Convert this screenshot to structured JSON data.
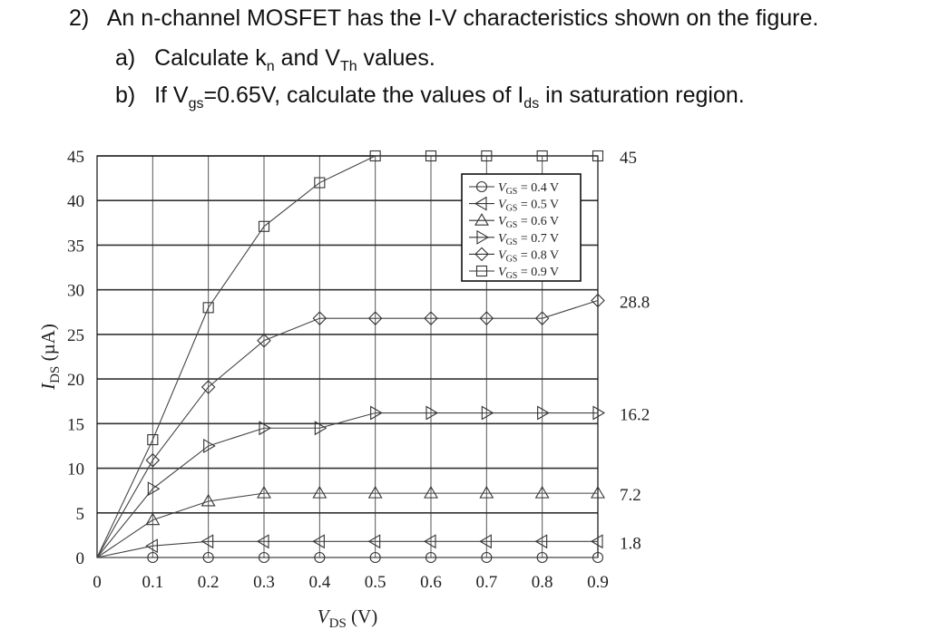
{
  "question": {
    "number": "2)",
    "text": "An n-channel MOSFET has the I-V characteristics shown on the figure.",
    "part_a": {
      "label": "a)",
      "pre": "Calculate k",
      "sub1": "n",
      "mid": " and V",
      "sub2": "Th",
      "post": " values."
    },
    "part_b": {
      "label": "b)",
      "pre": "If V",
      "sub1": "gs",
      "mid": "=0.65V, calculate the values of I",
      "sub2": "ds",
      "post": " in saturation region."
    }
  },
  "chart_data": {
    "type": "line",
    "xlabel": "V_DS (V)",
    "ylabel": "I_DS (µA)",
    "xlim": [
      0,
      0.9
    ],
    "ylim": [
      0,
      45
    ],
    "xticks": [
      0,
      0.1,
      0.2,
      0.3,
      0.4,
      0.5,
      0.6,
      0.7,
      0.8,
      0.9
    ],
    "xtick_labels": [
      "0",
      "0.1",
      "0.2",
      "0.3",
      "0.4",
      "0.5",
      "0.6",
      "0.7",
      "0.8",
      "0.9"
    ],
    "yticks": [
      0,
      5,
      10,
      15,
      20,
      25,
      30,
      35,
      40,
      45
    ],
    "ytick_labels": [
      "0",
      "5",
      "10",
      "15",
      "20",
      "25",
      "30",
      "35",
      "40",
      "45"
    ],
    "grid": true,
    "legend_position": "top-right",
    "x": [
      0,
      0.1,
      0.2,
      0.3,
      0.4,
      0.5,
      0.6,
      0.7,
      0.8,
      0.9
    ],
    "series": [
      {
        "name": "V_GS = 0.4 V",
        "marker": "circle",
        "values": [
          0,
          0,
          0,
          0,
          0,
          0,
          0,
          0,
          0,
          0
        ]
      },
      {
        "name": "V_GS = 0.5 V",
        "marker": "triangle-left",
        "values": [
          0,
          1.3,
          1.8,
          1.8,
          1.8,
          1.8,
          1.8,
          1.8,
          1.8,
          1.8
        ]
      },
      {
        "name": "V_GS = 0.6 V",
        "marker": "triangle-up",
        "values": [
          0,
          4.2,
          6.3,
          7.2,
          7.2,
          7.2,
          7.2,
          7.2,
          7.2,
          7.2
        ]
      },
      {
        "name": "V_GS = 0.7 V",
        "marker": "triangle-right",
        "values": [
          0,
          7.7,
          12.5,
          14.5,
          14.5,
          16.2,
          16.2,
          16.2,
          16.2,
          16.2
        ]
      },
      {
        "name": "V_GS = 0.8 V",
        "marker": "diamond",
        "values": [
          0,
          10.9,
          19.1,
          24.3,
          26.8,
          26.8,
          26.8,
          26.8,
          26.8,
          28.8
        ]
      },
      {
        "name": "V_GS = 0.9 V",
        "marker": "square",
        "values": [
          0,
          13.2,
          28.0,
          37.1,
          42.0,
          45,
          45,
          45,
          45,
          45
        ]
      }
    ],
    "annotations": [
      {
        "text": "45",
        "y": 45
      },
      {
        "text": "28.8",
        "y": 28.8
      },
      {
        "text": "16.2",
        "y": 16.2
      },
      {
        "text": "7.2",
        "y": 7.2
      },
      {
        "text": "1.8",
        "y": 1.8
      }
    ]
  }
}
